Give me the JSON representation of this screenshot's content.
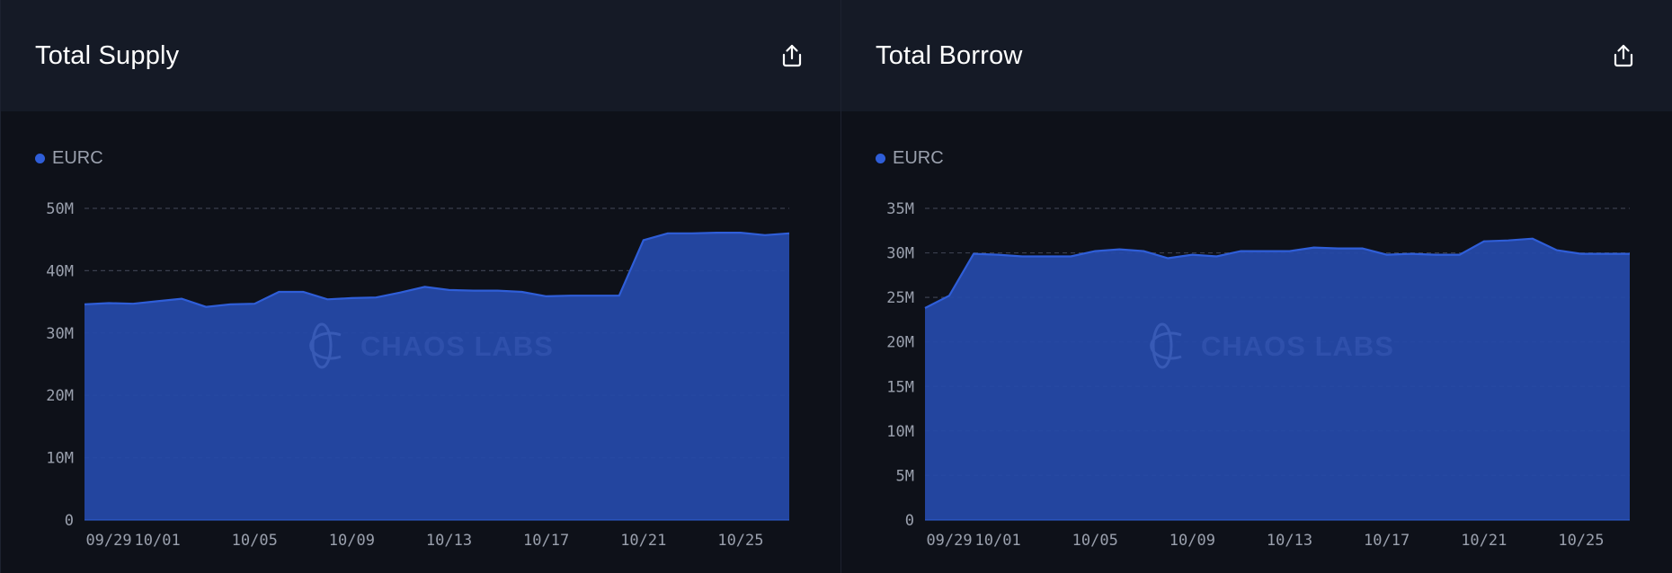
{
  "panels": [
    {
      "title": "Total Supply",
      "share_icon": "share-icon"
    },
    {
      "title": "Total Borrow",
      "share_icon": "share-icon"
    }
  ],
  "watermark": "CHAOS LABS",
  "colors": {
    "series": "#2f5ed8",
    "fill": "#2549a6",
    "grid": "#3a3f4d",
    "axis": "#9aa0ad"
  },
  "chart_data": [
    {
      "type": "area",
      "title": "Total Supply",
      "legend": [
        "EURC"
      ],
      "x": [
        "09/28",
        "09/29",
        "09/30",
        "10/01",
        "10/02",
        "10/03",
        "10/04",
        "10/05",
        "10/06",
        "10/07",
        "10/08",
        "10/09",
        "10/10",
        "10/11",
        "10/12",
        "10/13",
        "10/14",
        "10/15",
        "10/16",
        "10/17",
        "10/18",
        "10/19",
        "10/20",
        "10/21",
        "10/22",
        "10/23",
        "10/24",
        "10/25",
        "10/26",
        "10/27"
      ],
      "xticks": [
        "09/29",
        "10/01",
        "10/05",
        "10/09",
        "10/13",
        "10/17",
        "10/21",
        "10/25"
      ],
      "yticks": [
        "0",
        "10M",
        "20M",
        "30M",
        "40M",
        "50M"
      ],
      "ylim": [
        0,
        50000000
      ],
      "series": [
        {
          "name": "EURC",
          "values": [
            34600000,
            34800000,
            34700000,
            35100000,
            35500000,
            34200000,
            34600000,
            34700000,
            36600000,
            36600000,
            35400000,
            35600000,
            35700000,
            36500000,
            37400000,
            36900000,
            36800000,
            36800000,
            36600000,
            35900000,
            36000000,
            36000000,
            36000000,
            44900000,
            46000000,
            46000000,
            46100000,
            46100000,
            45700000,
            46000000
          ]
        }
      ]
    },
    {
      "type": "area",
      "title": "Total Borrow",
      "legend": [
        "EURC"
      ],
      "x": [
        "09/28",
        "09/29",
        "09/30",
        "10/01",
        "10/02",
        "10/03",
        "10/04",
        "10/05",
        "10/06",
        "10/07",
        "10/08",
        "10/09",
        "10/10",
        "10/11",
        "10/12",
        "10/13",
        "10/14",
        "10/15",
        "10/16",
        "10/17",
        "10/18",
        "10/19",
        "10/20",
        "10/21",
        "10/22",
        "10/23",
        "10/24",
        "10/25",
        "10/26",
        "10/27"
      ],
      "xticks": [
        "09/29",
        "10/01",
        "10/05",
        "10/09",
        "10/13",
        "10/17",
        "10/21",
        "10/25"
      ],
      "yticks": [
        "0",
        "5M",
        "10M",
        "15M",
        "20M",
        "25M",
        "30M",
        "35M"
      ],
      "ylim": [
        0,
        35000000
      ],
      "series": [
        {
          "name": "EURC",
          "values": [
            23800000,
            25200000,
            29900000,
            29800000,
            29600000,
            29600000,
            29600000,
            30200000,
            30400000,
            30200000,
            29400000,
            29800000,
            29600000,
            30200000,
            30200000,
            30200000,
            30600000,
            30500000,
            30500000,
            29800000,
            29900000,
            29800000,
            29800000,
            31300000,
            31400000,
            31600000,
            30300000,
            29900000,
            29900000,
            29900000
          ]
        }
      ]
    }
  ]
}
